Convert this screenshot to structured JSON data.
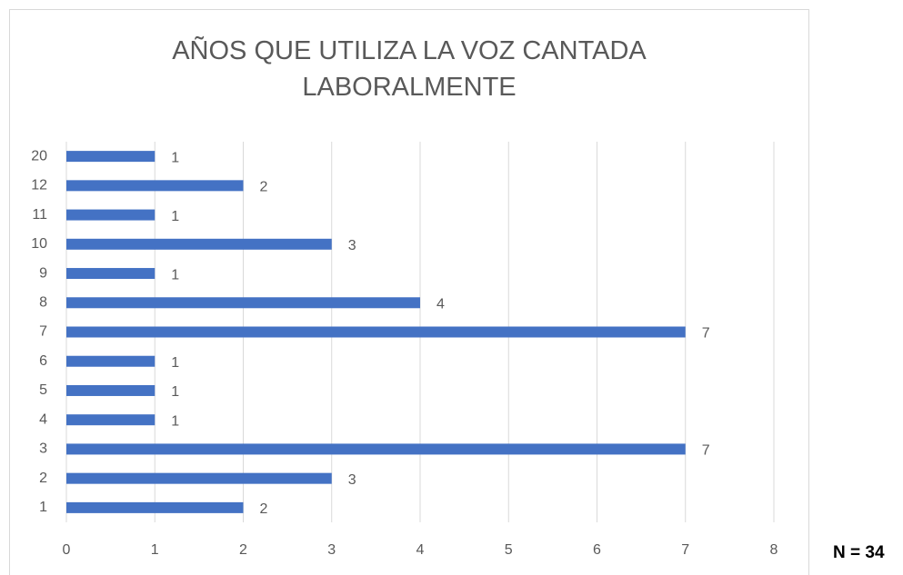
{
  "chart_data": {
    "type": "bar",
    "orientation": "horizontal",
    "title": "AÑOS QUE UTILIZA LA VOZ CANTADA LABORALMENTE",
    "annotation": "N = 34",
    "categories": [
      "1",
      "2",
      "3",
      "4",
      "5",
      "6",
      "7",
      "8",
      "9",
      "10",
      "11",
      "12",
      "20"
    ],
    "values": [
      2,
      3,
      7,
      1,
      1,
      1,
      7,
      4,
      1,
      3,
      1,
      2,
      1
    ],
    "color": "#4472c4",
    "xlim": [
      0,
      8
    ],
    "xticks": [
      0,
      1,
      2,
      3,
      4,
      5,
      6,
      7,
      8
    ],
    "grid": true
  }
}
